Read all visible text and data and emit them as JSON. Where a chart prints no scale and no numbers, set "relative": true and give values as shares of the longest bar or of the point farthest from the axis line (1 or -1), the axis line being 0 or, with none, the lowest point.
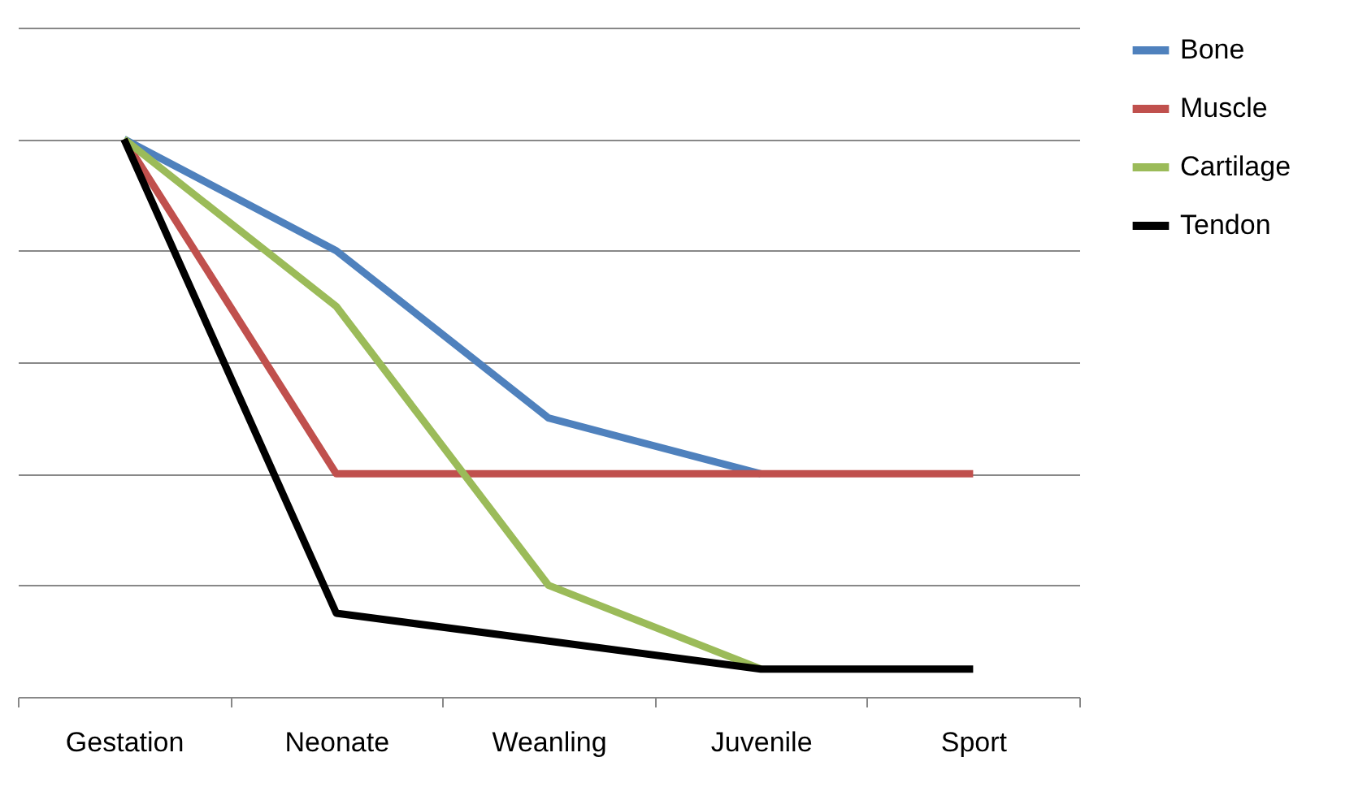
{
  "chart_data": {
    "type": "line",
    "relative": true,
    "categories": [
      "Gestation",
      "Neonate",
      "Weanling",
      "Juvenile",
      "Sport"
    ],
    "series": [
      {
        "name": "Bone",
        "color": "#4f81bd",
        "values": [
          1,
          0.8,
          0.5,
          0.4,
          null
        ]
      },
      {
        "name": "Muscle",
        "color": "#c0504d",
        "values": [
          1,
          0.4,
          0.4,
          0.4,
          0.4
        ]
      },
      {
        "name": "Cartilage",
        "color": "#9bbb59",
        "values": [
          1,
          0.7,
          0.2,
          0.05,
          null
        ]
      },
      {
        "name": "Tendon",
        "color": "#000000",
        "values": [
          1,
          0.15,
          0.1,
          0.05,
          0.05
        ]
      }
    ],
    "grid": "y",
    "legend": "right",
    "marker": "none",
    "line_style": "solid"
  }
}
